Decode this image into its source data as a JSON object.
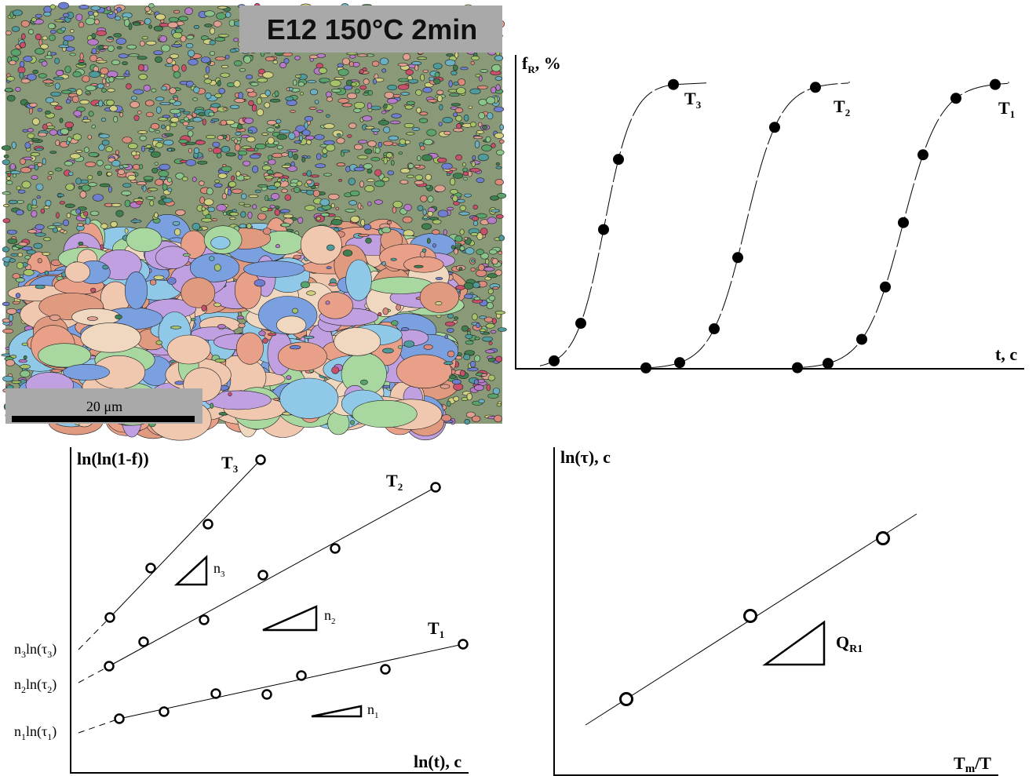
{
  "micrograph": {
    "title": "E12 150°C 2min",
    "scale_bar": "20 μm"
  },
  "kinetics": {
    "y_label": [
      "f",
      "R",
      ", %"
    ],
    "x_label": "t, c",
    "curves": [
      [
        "T",
        "3"
      ],
      [
        "T",
        "2"
      ],
      [
        "T",
        "1"
      ]
    ]
  },
  "avrami": {
    "y_label": "ln(ln(1-f))",
    "x_label": "ln(t), c",
    "lines": [
      [
        "T",
        "3"
      ],
      [
        "T",
        "2"
      ],
      [
        "T",
        "1"
      ]
    ],
    "slopes": [
      [
        "n",
        "3"
      ],
      [
        "n",
        "2"
      ],
      [
        "n",
        "1"
      ]
    ],
    "intercepts": [
      [
        "n",
        "3",
        "ln(τ",
        "3",
        ")"
      ],
      [
        "n",
        "2",
        "ln(τ",
        "2",
        ")"
      ],
      [
        "n",
        "1",
        "ln(τ",
        "1",
        ")"
      ]
    ]
  },
  "arrhenius": {
    "y_label": "ln(τ), c",
    "x_label": [
      "T",
      "m",
      "/T"
    ],
    "slope": [
      "Q",
      "R1"
    ]
  }
}
